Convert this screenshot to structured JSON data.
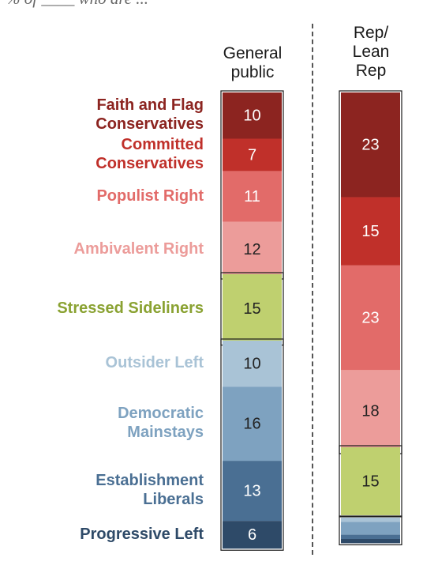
{
  "subtitle": "% of ____ who are ...",
  "chart_data": {
    "type": "bar",
    "stacked": true,
    "orientation": "vertical",
    "groups": [
      {
        "key": "general",
        "label": "General\npublic"
      },
      {
        "key": "rep",
        "label": "Rep/\nLean\nRep"
      }
    ],
    "categories": [
      {
        "name": "Faith and Flag Conservatives",
        "display": "Faith and Flag\nConservatives",
        "color": "#8c2420",
        "general": 10,
        "rep": 23
      },
      {
        "name": "Committed Conservatives",
        "display": "Committed\nConservatives",
        "color": "#c0302a",
        "general": 7,
        "rep": 15
      },
      {
        "name": "Populist Right",
        "display": "Populist Right",
        "color": "#e26b69",
        "general": 11,
        "rep": 23
      },
      {
        "name": "Ambivalent Right",
        "display": "Ambivalent Right",
        "color": "#ec9c9a",
        "general": 12,
        "rep": 18
      },
      {
        "name": "Stressed Sideliners",
        "display": "Stressed Sideliners",
        "color": "#bfd06f",
        "labelColor": "#8aa232",
        "general": 15,
        "rep": 15
      },
      {
        "name": "Outsider Left",
        "display": "Outsider Left",
        "color": "#a9c3d6",
        "general": 10,
        "rep": 1
      },
      {
        "name": "Democratic Mainstays",
        "display": "Democratic\nMainstays",
        "color": "#7ea2c0",
        "general": 16,
        "rep": 3
      },
      {
        "name": "Establishment Liberals",
        "display": "Establishment\nLiberals",
        "color": "#4a6f93",
        "general": 13,
        "rep": 1
      },
      {
        "name": "Progressive Left",
        "display": "Progressive Left",
        "color": "#2e4a68",
        "general": 6,
        "rep": 1
      }
    ],
    "rep_labels_shown": [
      "Faith and Flag Conservatives",
      "Committed Conservatives",
      "Populist Right",
      "Ambivalent Right",
      "Stressed Sideliners"
    ]
  }
}
